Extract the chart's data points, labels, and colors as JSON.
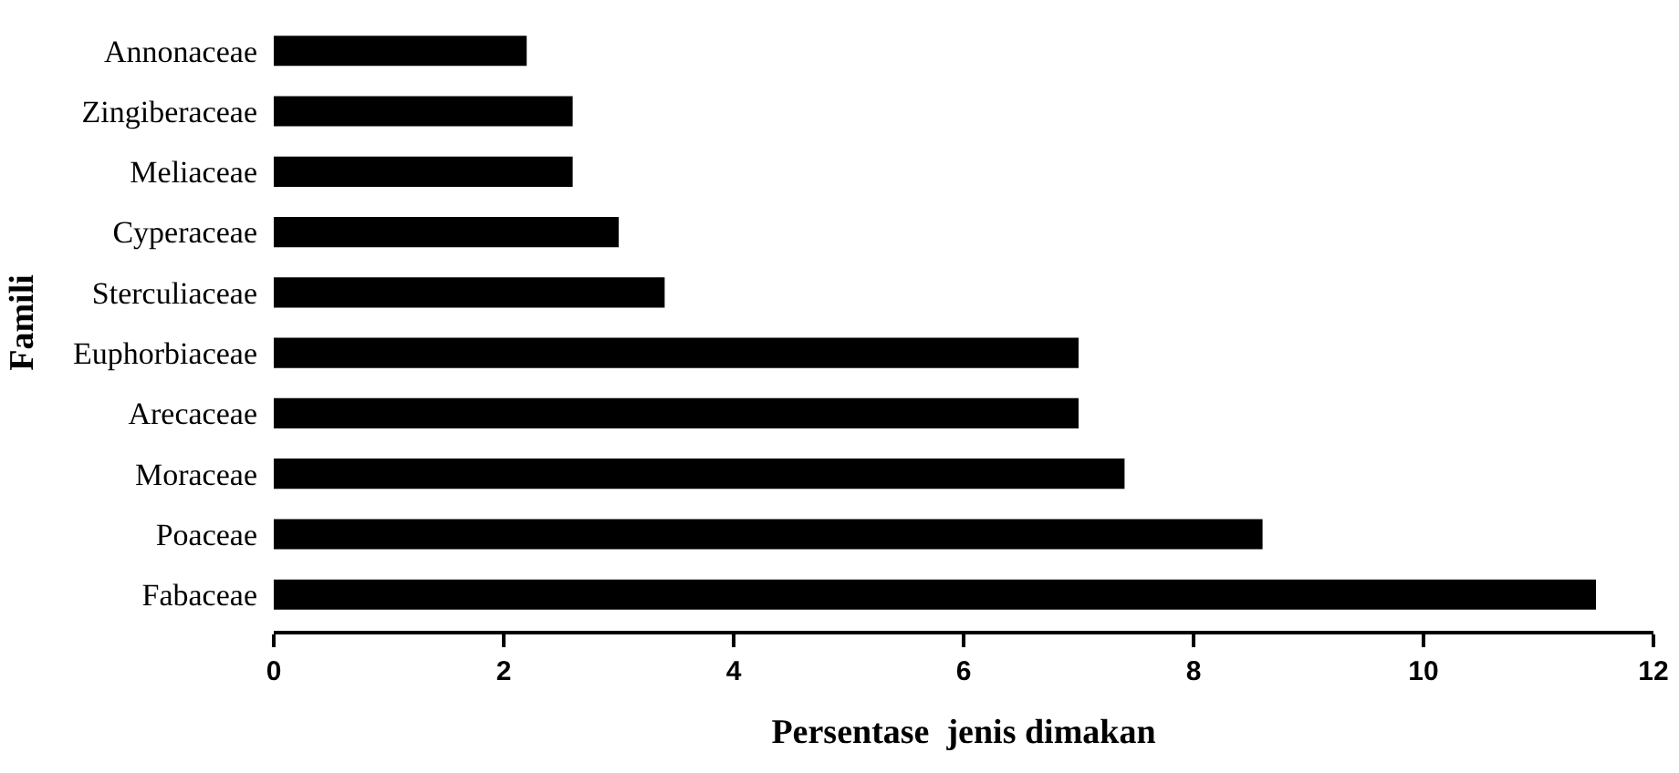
{
  "chart_data": {
    "type": "bar",
    "orientation": "horizontal",
    "xlabel": "Persentase  jenis dimakan",
    "ylabel": "Famili",
    "categories": [
      "Annonaceae",
      "Zingiberaceae",
      "Meliaceae",
      "Cyperaceae",
      "Sterculiaceae",
      "Euphorbiaceae",
      "Arecaceae",
      "Moraceae",
      "Poaceae",
      "Fabaceae"
    ],
    "values": [
      2.2,
      2.6,
      2.6,
      3.0,
      3.4,
      7.0,
      7.0,
      7.4,
      8.6,
      11.5
    ],
    "color": "#000000",
    "xlim": [
      0,
      12
    ],
    "xticks": [
      0,
      2,
      4,
      6,
      8,
      10,
      12
    ],
    "grid": false
  }
}
